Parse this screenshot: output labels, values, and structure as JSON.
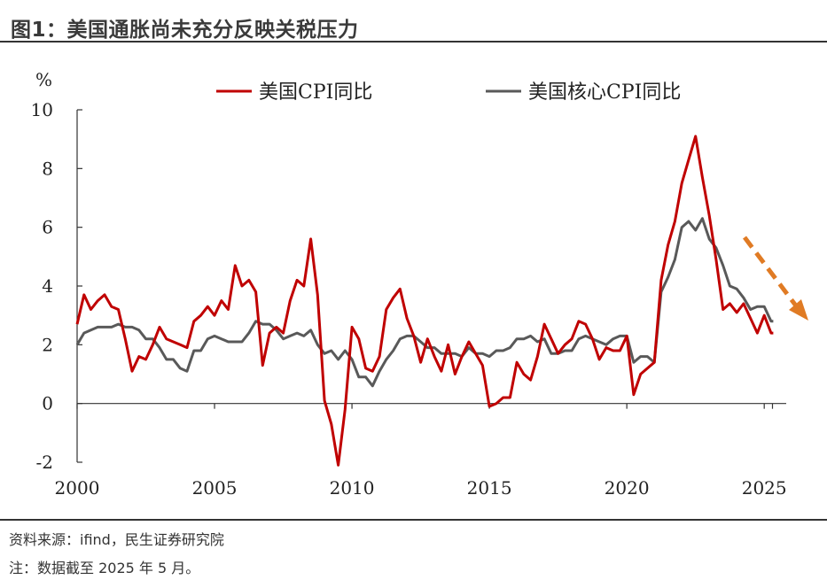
{
  "title": "图1：美国通胀尚未充分反映关税压力",
  "source": "资料来源：ifind，民生证券研究院",
  "note": "注：数据截至 2025 年 5 月。",
  "colors": {
    "cpi": "#c00000",
    "core": "#595959",
    "arrow": "#e07b24",
    "axis": "#333333"
  },
  "chart_data": {
    "type": "line",
    "ylabel": "%",
    "ylim": [
      -2,
      10
    ],
    "yticks": [
      "-2",
      "0",
      "2",
      "4",
      "6",
      "8",
      "10"
    ],
    "xlim": [
      2000,
      2025.8
    ],
    "xticks": [
      "2000",
      "2005",
      "2010",
      "2015",
      "2020",
      "2025"
    ],
    "legend": "top",
    "annotation": "downward-arrow",
    "series": [
      {
        "name": "美国CPI同比",
        "color": "#c00000",
        "points": [
          [
            2000.0,
            2.7
          ],
          [
            2000.25,
            3.7
          ],
          [
            2000.5,
            3.2
          ],
          [
            2000.75,
            3.5
          ],
          [
            2001.0,
            3.7
          ],
          [
            2001.25,
            3.3
          ],
          [
            2001.5,
            3.2
          ],
          [
            2001.75,
            2.2
          ],
          [
            2002.0,
            1.1
          ],
          [
            2002.25,
            1.6
          ],
          [
            2002.5,
            1.5
          ],
          [
            2002.75,
            2.0
          ],
          [
            2003.0,
            2.6
          ],
          [
            2003.25,
            2.2
          ],
          [
            2003.5,
            2.1
          ],
          [
            2003.75,
            2.0
          ],
          [
            2004.0,
            1.9
          ],
          [
            2004.25,
            2.8
          ],
          [
            2004.5,
            3.0
          ],
          [
            2004.75,
            3.3
          ],
          [
            2005.0,
            3.0
          ],
          [
            2005.25,
            3.5
          ],
          [
            2005.5,
            3.2
          ],
          [
            2005.75,
            4.7
          ],
          [
            2006.0,
            4.0
          ],
          [
            2006.25,
            4.2
          ],
          [
            2006.5,
            3.8
          ],
          [
            2006.75,
            1.3
          ],
          [
            2007.0,
            2.4
          ],
          [
            2007.25,
            2.6
          ],
          [
            2007.5,
            2.4
          ],
          [
            2007.75,
            3.5
          ],
          [
            2008.0,
            4.2
          ],
          [
            2008.25,
            4.0
          ],
          [
            2008.5,
            5.6
          ],
          [
            2008.75,
            3.7
          ],
          [
            2009.0,
            0.1
          ],
          [
            2009.25,
            -0.7
          ],
          [
            2009.5,
            -2.1
          ],
          [
            2009.75,
            -0.2
          ],
          [
            2010.0,
            2.6
          ],
          [
            2010.25,
            2.2
          ],
          [
            2010.5,
            1.2
          ],
          [
            2010.75,
            1.1
          ],
          [
            2011.0,
            1.6
          ],
          [
            2011.25,
            3.2
          ],
          [
            2011.5,
            3.6
          ],
          [
            2011.75,
            3.9
          ],
          [
            2012.0,
            2.9
          ],
          [
            2012.25,
            2.3
          ],
          [
            2012.5,
            1.4
          ],
          [
            2012.75,
            2.2
          ],
          [
            2013.0,
            1.6
          ],
          [
            2013.25,
            1.1
          ],
          [
            2013.5,
            2.0
          ],
          [
            2013.75,
            1.0
          ],
          [
            2014.0,
            1.6
          ],
          [
            2014.25,
            2.1
          ],
          [
            2014.5,
            1.7
          ],
          [
            2014.75,
            1.3
          ],
          [
            2015.0,
            -0.1
          ],
          [
            2015.25,
            0.0
          ],
          [
            2015.5,
            0.2
          ],
          [
            2015.75,
            0.2
          ],
          [
            2016.0,
            1.4
          ],
          [
            2016.25,
            1.0
          ],
          [
            2016.5,
            0.8
          ],
          [
            2016.75,
            1.6
          ],
          [
            2017.0,
            2.7
          ],
          [
            2017.25,
            2.2
          ],
          [
            2017.5,
            1.7
          ],
          [
            2017.75,
            2.0
          ],
          [
            2018.0,
            2.2
          ],
          [
            2018.25,
            2.8
          ],
          [
            2018.5,
            2.7
          ],
          [
            2018.75,
            2.2
          ],
          [
            2019.0,
            1.5
          ],
          [
            2019.25,
            1.9
          ],
          [
            2019.5,
            1.8
          ],
          [
            2019.75,
            1.8
          ],
          [
            2020.0,
            2.3
          ],
          [
            2020.25,
            0.3
          ],
          [
            2020.5,
            1.0
          ],
          [
            2020.75,
            1.2
          ],
          [
            2021.0,
            1.4
          ],
          [
            2021.25,
            4.2
          ],
          [
            2021.5,
            5.4
          ],
          [
            2021.75,
            6.2
          ],
          [
            2022.0,
            7.5
          ],
          [
            2022.25,
            8.3
          ],
          [
            2022.5,
            9.1
          ],
          [
            2022.75,
            7.7
          ],
          [
            2023.0,
            6.4
          ],
          [
            2023.25,
            4.9
          ],
          [
            2023.5,
            3.2
          ],
          [
            2023.75,
            3.4
          ],
          [
            2024.0,
            3.1
          ],
          [
            2024.25,
            3.4
          ],
          [
            2024.5,
            2.9
          ],
          [
            2024.75,
            2.4
          ],
          [
            2025.0,
            3.0
          ],
          [
            2025.25,
            2.4
          ],
          [
            2025.33,
            2.4
          ]
        ]
      },
      {
        "name": "美国核心CPI同比",
        "color": "#595959",
        "points": [
          [
            2000.0,
            2.0
          ],
          [
            2000.25,
            2.4
          ],
          [
            2000.5,
            2.5
          ],
          [
            2000.75,
            2.6
          ],
          [
            2001.0,
            2.6
          ],
          [
            2001.25,
            2.6
          ],
          [
            2001.5,
            2.7
          ],
          [
            2001.75,
            2.6
          ],
          [
            2002.0,
            2.6
          ],
          [
            2002.25,
            2.5
          ],
          [
            2002.5,
            2.2
          ],
          [
            2002.75,
            2.2
          ],
          [
            2003.0,
            1.9
          ],
          [
            2003.25,
            1.5
          ],
          [
            2003.5,
            1.5
          ],
          [
            2003.75,
            1.2
          ],
          [
            2004.0,
            1.1
          ],
          [
            2004.25,
            1.8
          ],
          [
            2004.5,
            1.8
          ],
          [
            2004.75,
            2.2
          ],
          [
            2005.0,
            2.3
          ],
          [
            2005.25,
            2.2
          ],
          [
            2005.5,
            2.1
          ],
          [
            2005.75,
            2.1
          ],
          [
            2006.0,
            2.1
          ],
          [
            2006.25,
            2.4
          ],
          [
            2006.5,
            2.8
          ],
          [
            2006.75,
            2.7
          ],
          [
            2007.0,
            2.7
          ],
          [
            2007.25,
            2.5
          ],
          [
            2007.5,
            2.2
          ],
          [
            2007.75,
            2.3
          ],
          [
            2008.0,
            2.4
          ],
          [
            2008.25,
            2.3
          ],
          [
            2008.5,
            2.5
          ],
          [
            2008.75,
            2.0
          ],
          [
            2009.0,
            1.7
          ],
          [
            2009.25,
            1.8
          ],
          [
            2009.5,
            1.5
          ],
          [
            2009.75,
            1.8
          ],
          [
            2010.0,
            1.5
          ],
          [
            2010.25,
            0.9
          ],
          [
            2010.5,
            0.9
          ],
          [
            2010.75,
            0.6
          ],
          [
            2011.0,
            1.1
          ],
          [
            2011.25,
            1.5
          ],
          [
            2011.5,
            1.8
          ],
          [
            2011.75,
            2.2
          ],
          [
            2012.0,
            2.3
          ],
          [
            2012.25,
            2.3
          ],
          [
            2012.5,
            2.1
          ],
          [
            2012.75,
            1.9
          ],
          [
            2013.0,
            1.9
          ],
          [
            2013.25,
            1.7
          ],
          [
            2013.5,
            1.7
          ],
          [
            2013.75,
            1.7
          ],
          [
            2014.0,
            1.6
          ],
          [
            2014.25,
            1.9
          ],
          [
            2014.5,
            1.7
          ],
          [
            2014.75,
            1.7
          ],
          [
            2015.0,
            1.6
          ],
          [
            2015.25,
            1.8
          ],
          [
            2015.5,
            1.8
          ],
          [
            2015.75,
            1.9
          ],
          [
            2016.0,
            2.2
          ],
          [
            2016.25,
            2.2
          ],
          [
            2016.5,
            2.3
          ],
          [
            2016.75,
            2.1
          ],
          [
            2017.0,
            2.2
          ],
          [
            2017.25,
            1.7
          ],
          [
            2017.5,
            1.7
          ],
          [
            2017.75,
            1.8
          ],
          [
            2018.0,
            1.8
          ],
          [
            2018.25,
            2.2
          ],
          [
            2018.5,
            2.3
          ],
          [
            2018.75,
            2.2
          ],
          [
            2019.0,
            2.1
          ],
          [
            2019.25,
            2.0
          ],
          [
            2019.5,
            2.2
          ],
          [
            2019.75,
            2.3
          ],
          [
            2020.0,
            2.3
          ],
          [
            2020.25,
            1.4
          ],
          [
            2020.5,
            1.6
          ],
          [
            2020.75,
            1.6
          ],
          [
            2021.0,
            1.4
          ],
          [
            2021.25,
            3.8
          ],
          [
            2021.5,
            4.3
          ],
          [
            2021.75,
            4.9
          ],
          [
            2022.0,
            6.0
          ],
          [
            2022.25,
            6.2
          ],
          [
            2022.5,
            5.9
          ],
          [
            2022.75,
            6.3
          ],
          [
            2023.0,
            5.6
          ],
          [
            2023.25,
            5.3
          ],
          [
            2023.5,
            4.7
          ],
          [
            2023.75,
            4.0
          ],
          [
            2024.0,
            3.9
          ],
          [
            2024.25,
            3.6
          ],
          [
            2024.5,
            3.2
          ],
          [
            2024.75,
            3.3
          ],
          [
            2025.0,
            3.3
          ],
          [
            2025.25,
            2.8
          ],
          [
            2025.33,
            2.8
          ]
        ]
      }
    ]
  }
}
